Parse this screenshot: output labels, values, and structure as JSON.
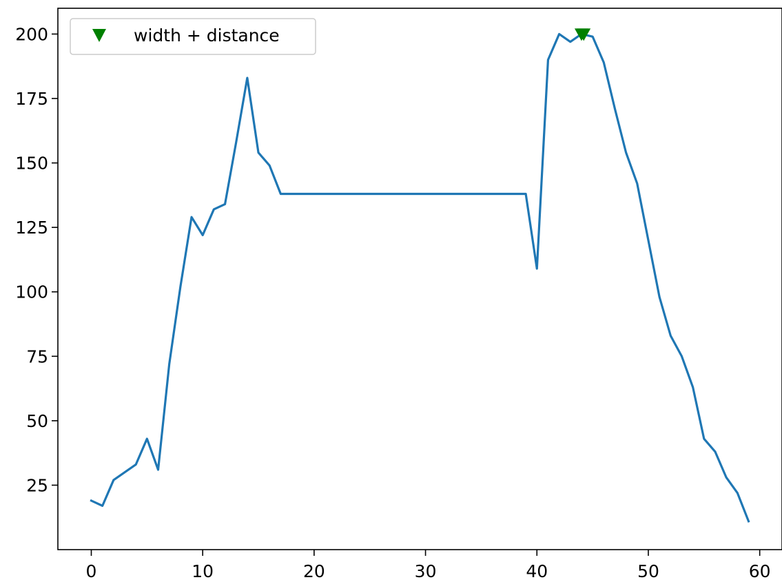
{
  "chart_data": {
    "type": "line",
    "title": "",
    "xlabel": "",
    "ylabel": "",
    "xlim": [
      -3,
      62
    ],
    "ylim": [
      0,
      210
    ],
    "x_ticks": [
      "0",
      "10",
      "20",
      "30",
      "40",
      "50",
      "60"
    ],
    "y_ticks": [
      "25",
      "50",
      "75",
      "100",
      "125",
      "150",
      "175",
      "200"
    ],
    "grid": false,
    "legend_position": "upper-left",
    "series": [
      {
        "type": "line",
        "color": "#1f77b4",
        "x": [
          0,
          1,
          2,
          3,
          4,
          5,
          6,
          7,
          8,
          9,
          10,
          11,
          12,
          13,
          14,
          15,
          16,
          17,
          18,
          19,
          20,
          21,
          22,
          23,
          24,
          25,
          26,
          27,
          28,
          29,
          30,
          31,
          32,
          33,
          34,
          35,
          36,
          37,
          38,
          39,
          40,
          41,
          42,
          43,
          44,
          45,
          46,
          47,
          48,
          49,
          50,
          51,
          52,
          53,
          54,
          55,
          56,
          57,
          58,
          59
        ],
        "y": [
          19,
          17,
          27,
          30,
          33,
          43,
          31,
          72,
          102,
          129,
          122,
          132,
          134,
          158,
          183,
          154,
          149,
          138,
          138,
          138,
          138,
          138,
          138,
          138,
          138,
          138,
          138,
          138,
          138,
          138,
          138,
          138,
          138,
          138,
          138,
          138,
          138,
          138,
          138,
          138,
          109,
          190,
          200,
          197,
          200,
          199,
          189,
          171,
          154,
          142,
          120,
          98,
          83,
          75,
          63,
          43,
          38,
          28,
          22,
          11
        ]
      },
      {
        "name": "width + distance",
        "type": "scatter",
        "marker": "triangle-down",
        "color": "#008000",
        "x": [
          44,
          44.2
        ],
        "y": [
          200,
          200
        ]
      }
    ]
  }
}
